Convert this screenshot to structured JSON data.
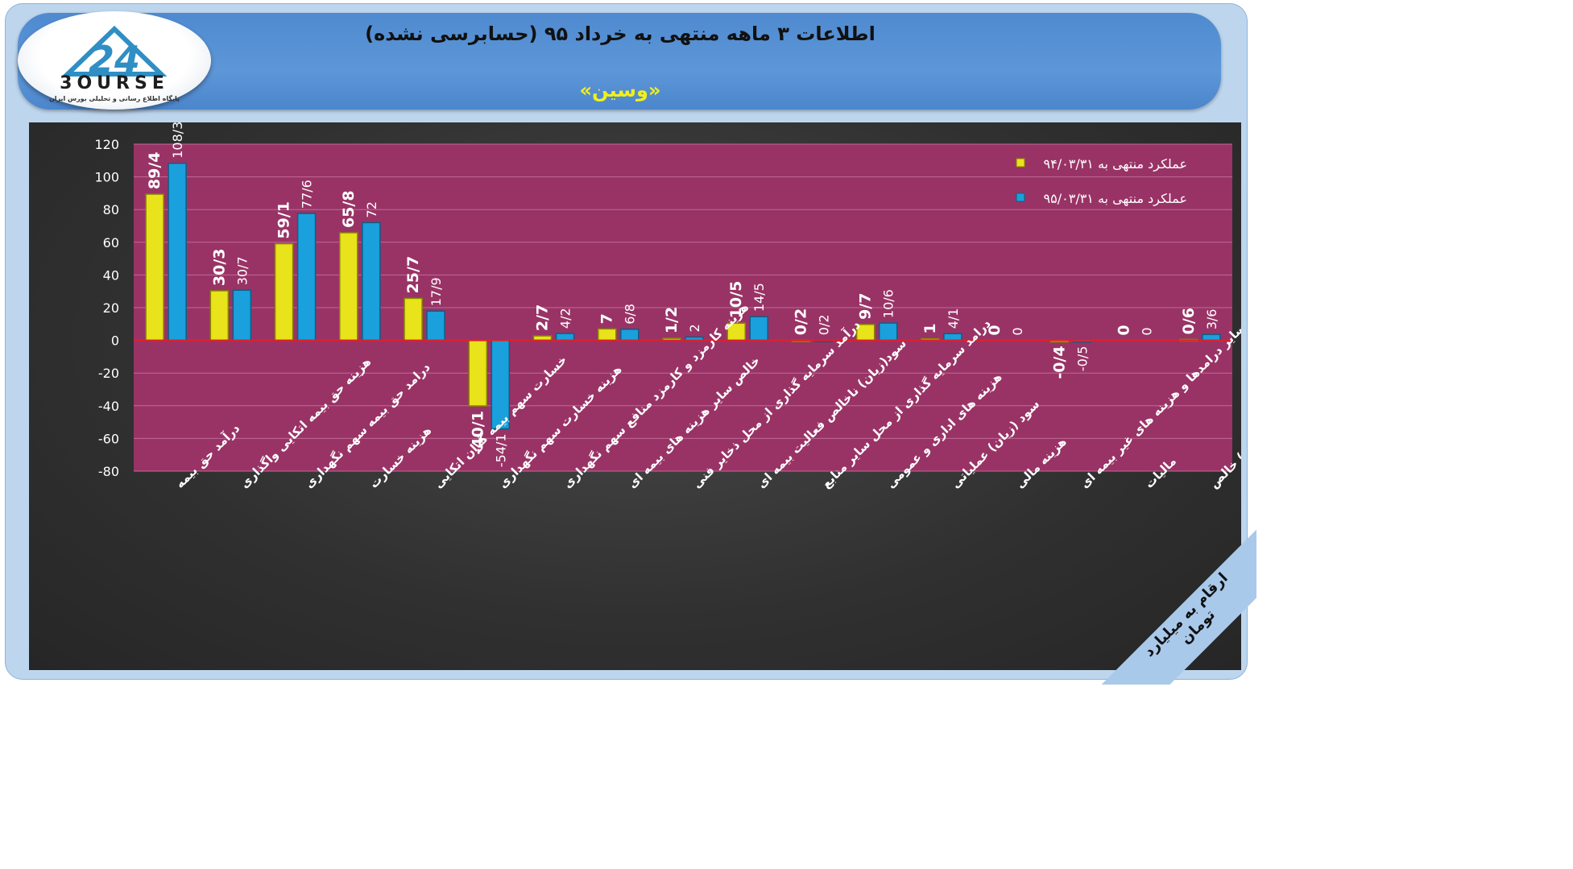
{
  "header": {
    "title": "اطلاعات ۳ ماهه منتهی به خرداد ۹۵ (حسابرسی نشده)",
    "subtitle": "«وسین»"
  },
  "logo": {
    "brand": "24 BOURSE",
    "tagline": "پایگاه اطلاع رسانی و تحلیلی بورس ایران"
  },
  "unit_note": "ارقام به میلیارد تومان",
  "colors": {
    "plot_bg": "#993366",
    "series_1": "#e8e31a",
    "series_2": "#1aa0dc",
    "zero_line": "#e0202a"
  },
  "chart_data": {
    "type": "bar",
    "ylim": [
      -80,
      120
    ],
    "yticks": [
      "120",
      "100",
      "80",
      "60",
      "40",
      "20",
      "0",
      "-20",
      "-40",
      "-60",
      "-80"
    ],
    "legend_position": "top-right",
    "categories": [
      "درآمد حق بیمه",
      "هزینه حق بیمه اتکایی واگذاری",
      "درامد حق بیمه سهم نگهداری",
      "هزینه خسارت",
      "خسارت سهم بیمه گران اتکایی",
      "هزینه خسارت سهم نگهداری",
      "هزینه کارمزد و کارمزد منافع سهم نگهداری",
      "خالص سایر هزینه های بیمه ای",
      "درآمد سرمایه گذاری از محل ذخایر فنی",
      "سود(زیان) ناخالص فعالیت بیمه ای",
      "درامد سرمایه گذاری از محل سایر منابع",
      "هزینه های اداری و عمومی",
      "سود (زیان) عملیاتی",
      "هزینه مالی",
      "خالص سایر درامدها و هزینه های غیر بیمه ای",
      "مالیات",
      "سود (زیان) خالص"
    ],
    "series": [
      {
        "name": "عملکرد منتهی به ۹۴/۰۳/۳۱",
        "values": [
          89.4,
          30.3,
          59.1,
          65.8,
          25.7,
          -40.1,
          2.7,
          7,
          1.2,
          10.5,
          0.2,
          9.7,
          1,
          0,
          -0.4,
          0,
          0.6
        ],
        "labels": [
          "89/4",
          "30/3",
          "59/1",
          "65/8",
          "25/7",
          "-40/1",
          "2/7",
          "7",
          "1/2",
          "10/5",
          "0/2",
          "9/7",
          "1",
          "0",
          "-0/4",
          "0",
          "0/6"
        ]
      },
      {
        "name": "عملکرد منتهی به ۹۵/۰۳/۳۱",
        "values": [
          108.3,
          30.7,
          77.6,
          72,
          17.9,
          -54.1,
          4.2,
          6.8,
          2,
          14.5,
          0.2,
          10.6,
          4.1,
          0,
          -0.5,
          0,
          3.6
        ],
        "labels": [
          "108/3",
          "30/7",
          "77/6",
          "72",
          "17/9",
          "-54/1",
          "4/2",
          "6/8",
          "2",
          "14/5",
          "0/2",
          "10/6",
          "4/1",
          "0",
          "-0/5",
          "0",
          "3/6"
        ]
      }
    ]
  }
}
